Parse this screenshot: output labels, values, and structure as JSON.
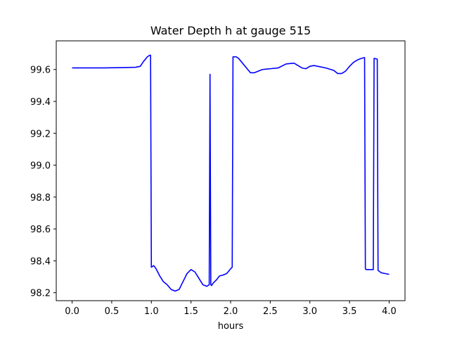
{
  "chart_data": {
    "type": "line",
    "title": "Water Depth h at gauge 515",
    "xlabel": "hours",
    "ylabel": "",
    "xlim": [
      -0.2,
      4.2
    ],
    "ylim": [
      98.15,
      99.78
    ],
    "xticks": [
      0.0,
      0.5,
      1.0,
      1.5,
      2.0,
      2.5,
      3.0,
      3.5,
      4.0
    ],
    "xtick_labels": [
      "0.0",
      "0.5",
      "1.0",
      "1.5",
      "2.0",
      "2.5",
      "3.0",
      "3.5",
      "4.0"
    ],
    "yticks": [
      98.2,
      98.4,
      98.6,
      98.8,
      99.0,
      99.2,
      99.4,
      99.6
    ],
    "ytick_labels": [
      "98.2",
      "98.4",
      "98.6",
      "98.8",
      "99.0",
      "99.2",
      "99.4",
      "99.6"
    ],
    "grid": false,
    "line_color": "#0000ff",
    "series": [
      {
        "name": "",
        "x": [
          0.0,
          0.2,
          0.4,
          0.6,
          0.8,
          0.86,
          0.9,
          0.95,
          0.98,
          0.99,
          1.0,
          1.03,
          1.06,
          1.1,
          1.15,
          1.2,
          1.25,
          1.3,
          1.35,
          1.4,
          1.45,
          1.5,
          1.55,
          1.6,
          1.65,
          1.7,
          1.73,
          1.74,
          1.75,
          1.76,
          1.78,
          1.82,
          1.86,
          1.9,
          1.95,
          2.0,
          2.02,
          2.03,
          2.04,
          2.07,
          2.1,
          2.15,
          2.2,
          2.25,
          2.3,
          2.4,
          2.5,
          2.6,
          2.7,
          2.8,
          2.9,
          2.95,
          3.0,
          3.05,
          3.1,
          3.2,
          3.3,
          3.35,
          3.4,
          3.45,
          3.5,
          3.55,
          3.6,
          3.65,
          3.69,
          3.7,
          3.71,
          3.8,
          3.81,
          3.85,
          3.86,
          3.9,
          3.95,
          4.0
        ],
        "values": [
          99.61,
          99.61,
          99.61,
          99.612,
          99.614,
          99.62,
          99.65,
          99.68,
          99.69,
          99.69,
          98.36,
          98.37,
          98.35,
          98.31,
          98.27,
          98.25,
          98.22,
          98.21,
          98.22,
          98.27,
          98.32,
          98.345,
          98.33,
          98.29,
          98.25,
          98.24,
          98.25,
          99.57,
          98.25,
          98.245,
          98.26,
          98.28,
          98.305,
          98.31,
          98.32,
          98.35,
          98.36,
          99.68,
          99.68,
          99.68,
          99.67,
          99.64,
          99.61,
          99.58,
          99.58,
          99.6,
          99.605,
          99.61,
          99.635,
          99.64,
          99.61,
          99.605,
          99.62,
          99.625,
          99.62,
          99.61,
          99.595,
          99.575,
          99.575,
          99.59,
          99.62,
          99.645,
          99.66,
          99.67,
          99.675,
          98.35,
          98.345,
          98.345,
          99.67,
          99.665,
          98.34,
          98.325,
          98.32,
          98.315
        ]
      }
    ]
  }
}
